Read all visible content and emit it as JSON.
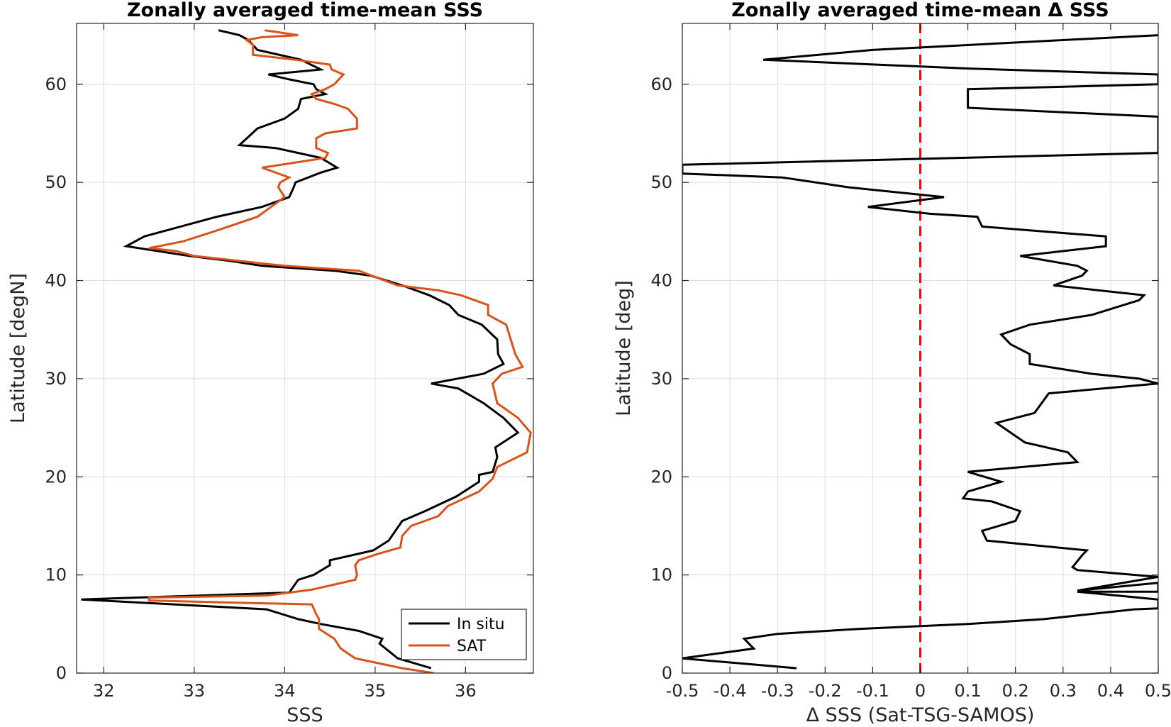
{
  "chart_data": [
    {
      "type": "line",
      "title": "Zonally averaged time-mean SSS",
      "xlabel": "SSS",
      "ylabel": "Latitude [degN]",
      "xlim": [
        31.7,
        36.75
      ],
      "ylim": [
        0,
        66.2
      ],
      "xticks": [
        32,
        33,
        34,
        35,
        36
      ],
      "yticks": [
        0,
        10,
        20,
        30,
        40,
        50,
        60
      ],
      "grid": true,
      "legend": "bottom-right",
      "series": [
        {
          "name": "In situ",
          "color": "#000000",
          "points": [
            [
              35.62,
              0.5
            ],
            [
              35.25,
              1.5
            ],
            [
              35.05,
              3.0
            ],
            [
              35.08,
              3.5
            ],
            [
              34.82,
              4.3
            ],
            [
              34.4,
              5.0
            ],
            [
              34.15,
              5.5
            ],
            [
              33.8,
              6.5
            ],
            [
              31.75,
              7.5
            ],
            [
              34.05,
              8.2
            ],
            [
              34.15,
              9.5
            ],
            [
              34.32,
              10.0
            ],
            [
              34.5,
              11.0
            ],
            [
              34.5,
              11.5
            ],
            [
              34.98,
              12.5
            ],
            [
              35.15,
              13.5
            ],
            [
              35.3,
              15.5
            ],
            [
              35.55,
              16.5
            ],
            [
              35.9,
              18.0
            ],
            [
              36.15,
              19.5
            ],
            [
              36.15,
              20.2
            ],
            [
              36.3,
              20.5
            ],
            [
              36.35,
              22.0
            ],
            [
              36.33,
              23.0
            ],
            [
              36.58,
              24.5
            ],
            [
              36.42,
              26.0
            ],
            [
              36.2,
              27.5
            ],
            [
              35.92,
              29.0
            ],
            [
              35.62,
              29.5
            ],
            [
              36.2,
              30.5
            ],
            [
              36.42,
              31.5
            ],
            [
              36.36,
              32.5
            ],
            [
              36.35,
              34.0
            ],
            [
              36.18,
              35.5
            ],
            [
              35.92,
              36.5
            ],
            [
              35.82,
              37.5
            ],
            [
              35.6,
              38.5
            ],
            [
              35.3,
              39.5
            ],
            [
              34.95,
              40.5
            ],
            [
              34.55,
              41.0
            ],
            [
              33.75,
              41.5
            ],
            [
              33.4,
              42.0
            ],
            [
              32.95,
              42.5
            ],
            [
              32.25,
              43.5
            ],
            [
              32.45,
              44.5
            ],
            [
              32.85,
              45.5
            ],
            [
              33.25,
              46.5
            ],
            [
              33.75,
              47.5
            ],
            [
              34.05,
              48.5
            ],
            [
              34.1,
              49.5
            ],
            [
              34.12,
              50.0
            ],
            [
              34.4,
              51.0
            ],
            [
              34.58,
              51.5
            ],
            [
              34.4,
              52.5
            ],
            [
              33.9,
              53.5
            ],
            [
              33.5,
              53.8
            ],
            [
              33.7,
              55.5
            ],
            [
              34.0,
              56.5
            ],
            [
              34.15,
              57.5
            ],
            [
              34.18,
              58.5
            ],
            [
              34.45,
              59.0
            ],
            [
              34.35,
              59.5
            ],
            [
              34.32,
              60.0
            ],
            [
              34.05,
              60.5
            ],
            [
              33.82,
              61.0
            ],
            [
              34.4,
              61.5
            ],
            [
              34.18,
              62.5
            ],
            [
              33.7,
              63.5
            ],
            [
              33.6,
              64.5
            ],
            [
              33.5,
              65.0
            ],
            [
              33.27,
              65.5
            ]
          ]
        },
        {
          "name": "SAT",
          "color": "#D95319",
          "points": [
            [
              35.65,
              0.0
            ],
            [
              35.3,
              0.5
            ],
            [
              34.78,
              1.5
            ],
            [
              34.62,
              2.5
            ],
            [
              34.55,
              3.5
            ],
            [
              34.38,
              4.5
            ],
            [
              34.38,
              5.5
            ],
            [
              34.35,
              6.0
            ],
            [
              34.3,
              7.0
            ],
            [
              33.35,
              7.2
            ],
            [
              32.5,
              7.4
            ],
            [
              32.5,
              7.7
            ],
            [
              33.8,
              7.9
            ],
            [
              34.3,
              8.5
            ],
            [
              34.78,
              9.5
            ],
            [
              34.8,
              10.0
            ],
            [
              34.78,
              11.0
            ],
            [
              34.82,
              11.5
            ],
            [
              35.05,
              12.2
            ],
            [
              35.28,
              12.8
            ],
            [
              35.3,
              14.0
            ],
            [
              35.35,
              14.5
            ],
            [
              35.4,
              15.0
            ],
            [
              35.7,
              16.0
            ],
            [
              35.8,
              17.0
            ],
            [
              36.15,
              18.5
            ],
            [
              36.3,
              19.8
            ],
            [
              36.35,
              21.0
            ],
            [
              36.68,
              22.5
            ],
            [
              36.72,
              24.5
            ],
            [
              36.58,
              26.0
            ],
            [
              36.35,
              27.5
            ],
            [
              36.3,
              29.5
            ],
            [
              36.4,
              30.5
            ],
            [
              36.63,
              31.2
            ],
            [
              36.55,
              32.5
            ],
            [
              36.5,
              34.0
            ],
            [
              36.45,
              35.5
            ],
            [
              36.25,
              36.5
            ],
            [
              36.25,
              37.5
            ],
            [
              35.95,
              38.5
            ],
            [
              35.7,
              39.0
            ],
            [
              35.25,
              39.5
            ],
            [
              34.82,
              41.0
            ],
            [
              34.0,
              41.5
            ],
            [
              33.5,
              42.0
            ],
            [
              33.0,
              42.5
            ],
            [
              32.8,
              43.0
            ],
            [
              32.5,
              43.3
            ],
            [
              32.88,
              44.0
            ],
            [
              33.22,
              45.0
            ],
            [
              33.7,
              46.5
            ],
            [
              34.0,
              48.5
            ],
            [
              33.93,
              49.5
            ],
            [
              33.95,
              50.0
            ],
            [
              34.05,
              50.5
            ],
            [
              33.75,
              51.5
            ],
            [
              34.1,
              52.0
            ],
            [
              34.45,
              52.5
            ],
            [
              34.48,
              53.0
            ],
            [
              34.35,
              53.5
            ],
            [
              34.35,
              54.5
            ],
            [
              34.45,
              55.0
            ],
            [
              34.8,
              55.5
            ],
            [
              34.8,
              56.5
            ],
            [
              34.7,
              57.5
            ],
            [
              34.55,
              58.0
            ],
            [
              34.35,
              58.5
            ],
            [
              34.3,
              59.0
            ],
            [
              34.45,
              59.5
            ],
            [
              34.55,
              60.0
            ],
            [
              34.65,
              61.0
            ],
            [
              34.52,
              61.5
            ],
            [
              34.5,
              62.0
            ],
            [
              34.12,
              62.5
            ],
            [
              33.65,
              63.0
            ],
            [
              33.65,
              64.0
            ],
            [
              33.58,
              64.5
            ],
            [
              33.75,
              64.8
            ],
            [
              34.15,
              65.0
            ],
            [
              33.78,
              65.5
            ]
          ]
        }
      ]
    },
    {
      "type": "line",
      "title": "Zonally averaged time-mean Δ SSS",
      "xlabel": "Δ SSS (Sat-TSG-SAMOS)",
      "ylabel": "Latitude [deg]",
      "xlim": [
        -0.5,
        0.5
      ],
      "ylim": [
        0,
        66.2
      ],
      "xticks": [
        -0.5,
        -0.4,
        -0.3,
        -0.2,
        -0.1,
        0,
        0.1,
        0.2,
        0.3,
        0.4,
        0.5
      ],
      "yticks": [
        0,
        10,
        20,
        30,
        40,
        50,
        60
      ],
      "grid": true,
      "reference_line": {
        "x": 0,
        "color": "#FF0000",
        "style": "dashed"
      },
      "series": [
        {
          "color": "#000000",
          "points": [
            [
              -0.26,
              0.5
            ],
            [
              -0.5,
              1.5
            ],
            [
              -0.35,
              2.5
            ],
            [
              -0.37,
              3.5
            ],
            [
              -0.3,
              4.0
            ],
            [
              -0.13,
              4.5
            ],
            [
              0.1,
              5.0
            ],
            [
              0.26,
              5.5
            ],
            [
              0.45,
              6.5
            ],
            [
              0.5,
              6.6
            ],
            [
              0.5,
              7.5
            ],
            [
              0.33,
              8.3
            ],
            [
              0.5,
              8.3
            ],
            [
              0.5,
              9.2
            ],
            [
              0.33,
              8.4
            ],
            [
              0.5,
              9.8
            ],
            [
              0.33,
              10.5
            ],
            [
              0.32,
              10.8
            ],
            [
              0.34,
              12.0
            ],
            [
              0.35,
              12.5
            ],
            [
              0.14,
              13.5
            ],
            [
              0.13,
              14.5
            ],
            [
              0.2,
              15.5
            ],
            [
              0.21,
              16.5
            ],
            [
              0.15,
              17.5
            ],
            [
              0.09,
              17.8
            ],
            [
              0.1,
              18.5
            ],
            [
              0.17,
              19.5
            ],
            [
              0.1,
              20.5
            ],
            [
              0.33,
              21.5
            ],
            [
              0.31,
              22.5
            ],
            [
              0.22,
              23.5
            ],
            [
              0.16,
              25.5
            ],
            [
              0.24,
              26.5
            ],
            [
              0.27,
              28.5
            ],
            [
              0.5,
              29.5
            ],
            [
              0.46,
              30.0
            ],
            [
              0.36,
              30.5
            ],
            [
              0.23,
              31.5
            ],
            [
              0.23,
              32.5
            ],
            [
              0.19,
              33.5
            ],
            [
              0.17,
              34.5
            ],
            [
              0.23,
              35.5
            ],
            [
              0.36,
              36.5
            ],
            [
              0.46,
              38.0
            ],
            [
              0.47,
              38.5
            ],
            [
              0.28,
              39.5
            ],
            [
              0.34,
              40.5
            ],
            [
              0.35,
              41.0
            ],
            [
              0.33,
              41.5
            ],
            [
              0.21,
              42.5
            ],
            [
              0.39,
              43.5
            ],
            [
              0.39,
              44.5
            ],
            [
              0.13,
              45.5
            ],
            [
              0.12,
              46.5
            ],
            [
              0.02,
              46.8
            ],
            [
              -0.11,
              47.5
            ],
            [
              0.05,
              48.5
            ],
            [
              -0.15,
              49.5
            ],
            [
              -0.29,
              50.5
            ],
            [
              -0.5,
              50.9
            ],
            [
              -0.5,
              51.0
            ],
            [
              -0.5,
              51.8
            ],
            [
              0.5,
              53.0
            ],
            [
              0.5,
              56.7
            ],
            [
              0.1,
              57.6
            ],
            [
              0.1,
              59.5
            ],
            [
              0.5,
              60.0
            ],
            [
              0.5,
              61.0
            ],
            [
              0.1,
              61.6
            ],
            [
              -0.33,
              62.5
            ],
            [
              -0.1,
              63.5
            ],
            [
              0.5,
              65.0
            ]
          ]
        }
      ]
    }
  ]
}
